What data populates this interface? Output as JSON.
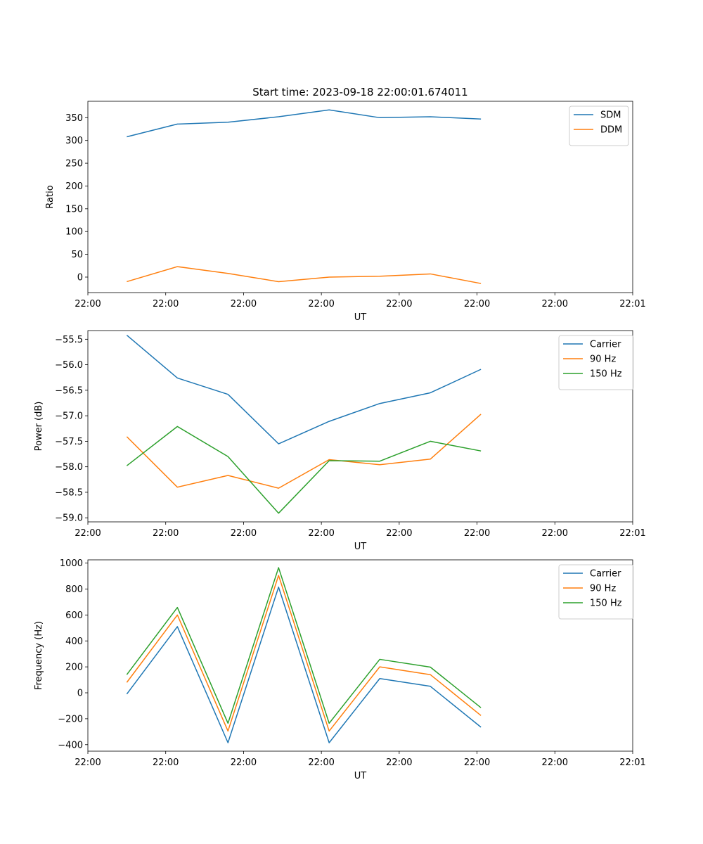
{
  "title": "Start time: 2023-09-18 22:00:01.674011",
  "chart_data": [
    {
      "type": "line",
      "xlabel": "UT",
      "ylabel": "Ratio",
      "x_tick_labels": [
        "22:00",
        "22:00",
        "22:00",
        "22:00",
        "22:00",
        "22:00",
        "22:00",
        "22:01"
      ],
      "xlim": [
        0,
        7
      ],
      "x": [
        0.5,
        1.15,
        1.8,
        2.45,
        3.1,
        3.75,
        4.4,
        5.05
      ],
      "ylim": [
        -34,
        386
      ],
      "yticks": [
        0,
        50,
        100,
        150,
        200,
        250,
        300,
        350
      ],
      "series": [
        {
          "name": "SDM",
          "color": "#1f77b4",
          "values": [
            308,
            336,
            340,
            352,
            367,
            350,
            352,
            347
          ]
        },
        {
          "name": "DDM",
          "color": "#ff7f0e",
          "values": [
            -10,
            23,
            8,
            -10,
            0,
            2,
            7,
            -14
          ]
        }
      ],
      "legend": "top-right"
    },
    {
      "type": "line",
      "xlabel": "UT",
      "ylabel": "Power (dB)",
      "x_tick_labels": [
        "22:00",
        "22:00",
        "22:00",
        "22:00",
        "22:00",
        "22:00",
        "22:00",
        "22:01"
      ],
      "xlim": [
        0,
        7
      ],
      "x": [
        0.5,
        1.15,
        1.8,
        2.45,
        3.1,
        3.75,
        4.4,
        5.05
      ],
      "ylim": [
        -59.08,
        -55.33
      ],
      "yticks": [
        -59.0,
        -58.5,
        -58.0,
        -57.5,
        -57.0,
        -56.5,
        -56.0,
        -55.5
      ],
      "ytick_labels": [
        "−59.0",
        "−58.5",
        "−58.0",
        "−57.5",
        "−57.0",
        "−56.5",
        "−56.0",
        "−55.5"
      ],
      "series": [
        {
          "name": "Carrier",
          "color": "#1f77b4",
          "values": [
            -55.42,
            -56.26,
            -56.58,
            -57.55,
            -57.11,
            -56.76,
            -56.55,
            -56.09
          ]
        },
        {
          "name": "90 Hz",
          "color": "#ff7f0e",
          "values": [
            -57.41,
            -58.4,
            -58.17,
            -58.42,
            -57.86,
            -57.96,
            -57.85,
            -56.97
          ]
        },
        {
          "name": "150 Hz",
          "color": "#2ca02c",
          "values": [
            -57.98,
            -57.21,
            -57.8,
            -58.91,
            -57.88,
            -57.89,
            -57.5,
            -57.69
          ]
        }
      ],
      "legend": "top-right"
    },
    {
      "type": "line",
      "xlabel": "UT",
      "ylabel": "Frequency (Hz)",
      "x_tick_labels": [
        "22:00",
        "22:00",
        "22:00",
        "22:00",
        "22:00",
        "22:00",
        "22:00",
        "22:01"
      ],
      "xlim": [
        0,
        7
      ],
      "x": [
        0.5,
        1.15,
        1.8,
        2.45,
        3.1,
        3.75,
        4.4,
        5.05
      ],
      "ylim": [
        -450,
        1025
      ],
      "yticks": [
        -400,
        -200,
        0,
        200,
        400,
        600,
        800,
        1000
      ],
      "ytick_labels": [
        "−400",
        "−200",
        "0",
        "200",
        "400",
        "600",
        "800",
        "1000"
      ],
      "series": [
        {
          "name": "Carrier",
          "color": "#1f77b4",
          "values": [
            -10,
            510,
            -385,
            815,
            -385,
            110,
            50,
            -265
          ]
        },
        {
          "name": "90 Hz",
          "color": "#ff7f0e",
          "values": [
            80,
            600,
            -295,
            905,
            -295,
            200,
            140,
            -175
          ]
        },
        {
          "name": "150 Hz",
          "color": "#2ca02c",
          "values": [
            140,
            658,
            -235,
            965,
            -235,
            258,
            198,
            -115
          ]
        }
      ],
      "legend": "top-right"
    }
  ]
}
